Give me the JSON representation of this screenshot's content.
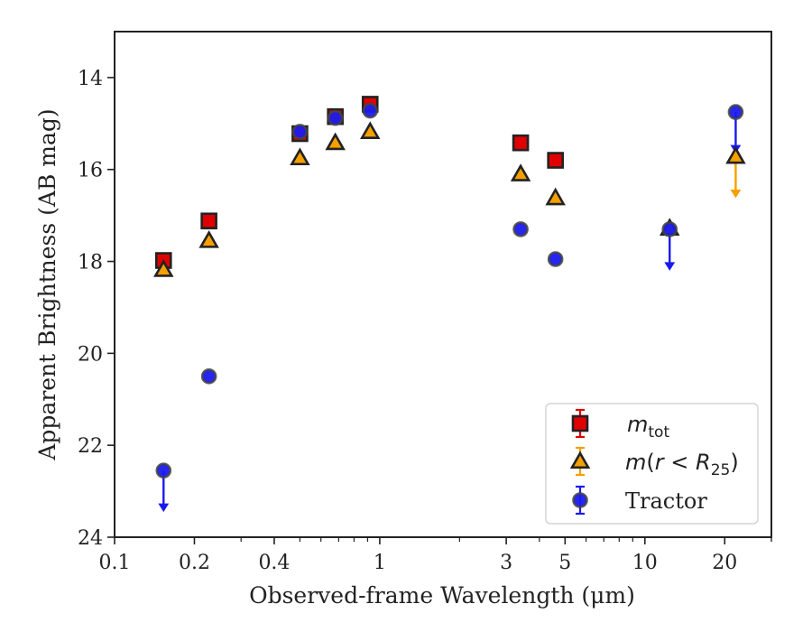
{
  "chart_data": {
    "type": "scatter",
    "xlabel": "Observed-frame Wavelength (μm)",
    "ylabel": "Apparent Brightness (AB mag)",
    "xscale": "log",
    "xlim": [
      0.1,
      30
    ],
    "ylim": [
      24,
      13
    ],
    "y_inverted": true,
    "xticks": [
      0.1,
      0.2,
      0.4,
      1,
      3,
      5,
      10,
      20
    ],
    "xtick_labels": [
      "0.1",
      "0.2",
      "0.4",
      "1",
      "3",
      "5",
      "10",
      "20"
    ],
    "yticks": [
      14,
      16,
      18,
      20,
      22,
      24
    ],
    "ytick_labels": [
      "14",
      "16",
      "18",
      "20",
      "22",
      "24"
    ],
    "grid": false,
    "legend_position": "lower-right",
    "series": [
      {
        "name": "m_tot",
        "legend_label": "mtot",
        "marker": "square",
        "color": "#e00000",
        "x": [
          0.153,
          0.227,
          0.5,
          0.68,
          0.92,
          3.4,
          4.6
        ],
        "y": [
          17.98,
          17.12,
          15.22,
          14.85,
          14.58,
          15.42,
          15.8
        ],
        "upper_limit": [
          false,
          false,
          false,
          false,
          false,
          false,
          false
        ]
      },
      {
        "name": "m(r < R25)",
        "legend_label": "m(r<R25)",
        "marker": "triangle",
        "color": "#f5a000",
        "x": [
          0.153,
          0.227,
          0.5,
          0.68,
          0.92,
          3.4,
          4.6,
          12.4,
          22.0
        ],
        "y": [
          18.18,
          17.55,
          15.75,
          15.42,
          15.18,
          16.1,
          16.62,
          17.28,
          15.72
        ],
        "upper_limit": [
          false,
          false,
          false,
          false,
          false,
          false,
          false,
          false,
          true
        ]
      },
      {
        "name": "Tractor",
        "legend_label": "Tractor",
        "marker": "circle",
        "color": "#1a1aee",
        "x": [
          0.153,
          0.227,
          0.5,
          0.68,
          0.92,
          3.4,
          4.6,
          12.4,
          22.0
        ],
        "y": [
          22.55,
          20.5,
          15.18,
          14.88,
          14.72,
          17.3,
          17.95,
          17.3,
          14.75
        ],
        "upper_limit": [
          true,
          false,
          false,
          false,
          false,
          false,
          false,
          true,
          true
        ]
      }
    ]
  }
}
